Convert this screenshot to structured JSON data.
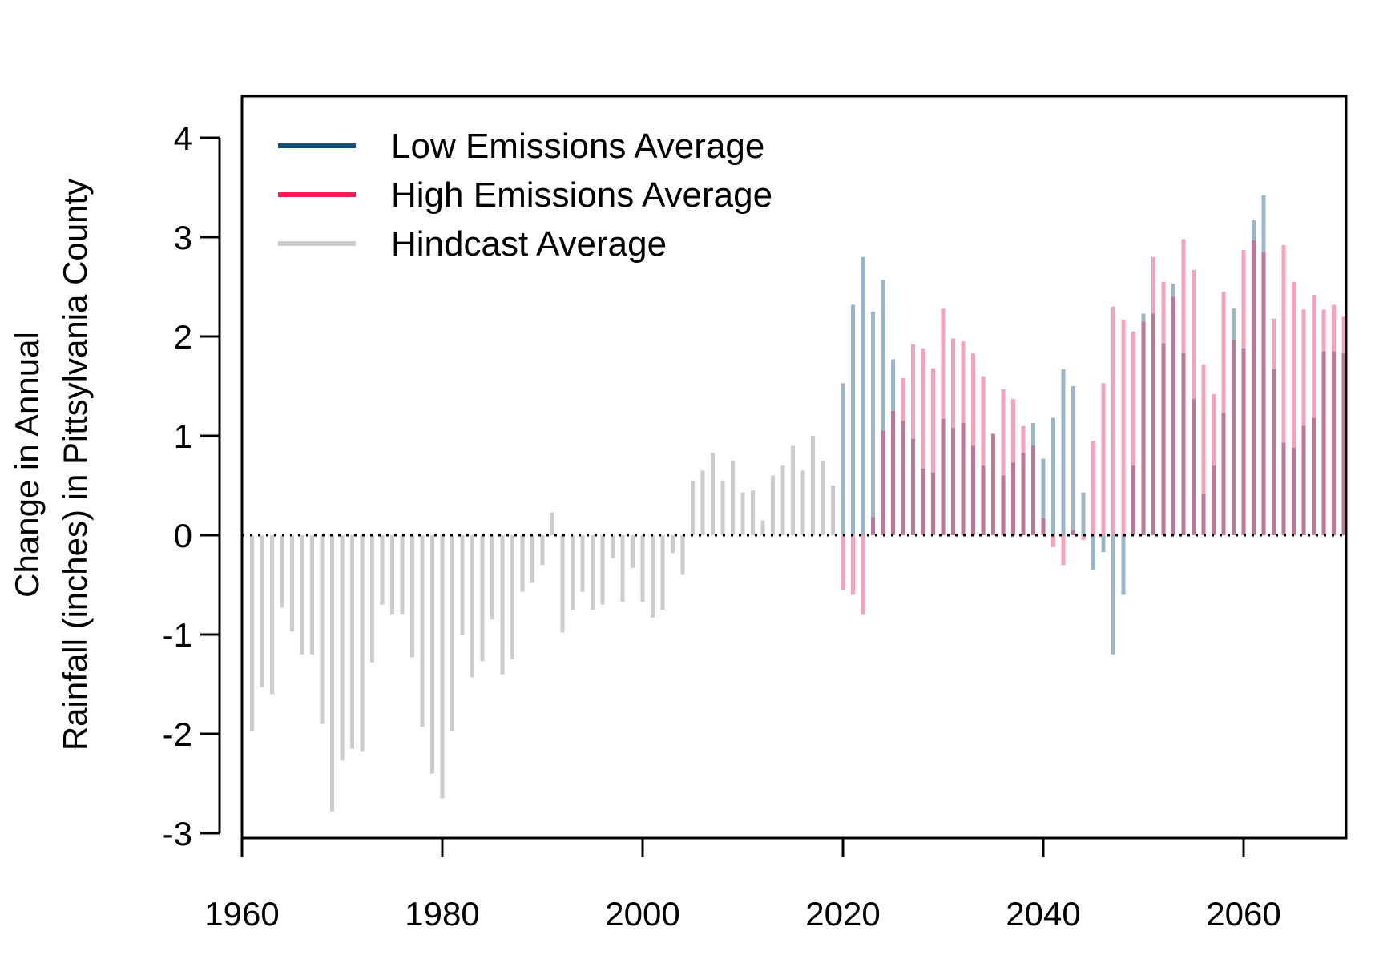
{
  "chart_data": {
    "type": "bar",
    "title": "",
    "xlabel": "",
    "ylabel": [
      "Change in Annual",
      "Rainfall (inches) in Pittsylvania County"
    ],
    "xlim": [
      1960,
      2070
    ],
    "ylim": [
      -3,
      4
    ],
    "x_ticks": [
      "1960",
      "1980",
      "2000",
      "2020",
      "2040",
      "2060"
    ],
    "y_ticks": [
      "-3",
      "-2",
      "-1",
      "0",
      "1",
      "2",
      "3",
      "4"
    ],
    "reference_line": {
      "y": 0,
      "style": "dotted"
    },
    "grid": false,
    "legend": {
      "position": "top-left"
    },
    "series": [
      {
        "name": "Hindcast Average",
        "color": "#cccccc",
        "x": [
          1961,
          1962,
          1963,
          1964,
          1965,
          1966,
          1967,
          1968,
          1969,
          1970,
          1971,
          1972,
          1973,
          1974,
          1975,
          1976,
          1977,
          1978,
          1979,
          1980,
          1981,
          1982,
          1983,
          1984,
          1985,
          1986,
          1987,
          1988,
          1989,
          1990,
          1991,
          1992,
          1993,
          1994,
          1995,
          1996,
          1997,
          1998,
          1999,
          2000,
          2001,
          2002,
          2003,
          2004,
          2005,
          2006,
          2007,
          2008,
          2009,
          2010,
          2011,
          2012,
          2013,
          2014,
          2015,
          2016,
          2017,
          2018,
          2019
        ],
        "values": [
          -1.97,
          -1.53,
          -1.6,
          -0.73,
          -0.97,
          -1.2,
          -1.2,
          -1.9,
          -2.78,
          -2.27,
          -2.15,
          -2.18,
          -1.28,
          -0.7,
          -0.8,
          -0.8,
          -1.23,
          -1.93,
          -2.4,
          -2.65,
          -1.97,
          -1.0,
          -1.43,
          -1.27,
          -0.85,
          -1.4,
          -1.25,
          -0.57,
          -0.48,
          -0.3,
          0.23,
          -0.98,
          -0.75,
          -0.57,
          -0.75,
          -0.7,
          -0.23,
          -0.67,
          -0.33,
          -0.67,
          -0.83,
          -0.75,
          -0.18,
          -0.4,
          0.55,
          0.65,
          0.83,
          0.55,
          0.75,
          0.43,
          0.45,
          0.15,
          0.6,
          0.7,
          0.9,
          0.65,
          1.0,
          0.75,
          0.5
        ]
      },
      {
        "name": "Low Emissions Average",
        "color": "#14507a",
        "x": [
          2020,
          2021,
          2022,
          2023,
          2024,
          2025,
          2026,
          2027,
          2028,
          2029,
          2030,
          2031,
          2032,
          2033,
          2034,
          2035,
          2036,
          2037,
          2038,
          2039,
          2040,
          2041,
          2042,
          2043,
          2044,
          2045,
          2046,
          2047,
          2048,
          2049,
          2050,
          2051,
          2052,
          2053,
          2054,
          2055,
          2056,
          2057,
          2058,
          2059,
          2060,
          2061,
          2062,
          2063,
          2064,
          2065,
          2066,
          2067,
          2068,
          2069,
          2070
        ],
        "values": [
          1.53,
          2.32,
          2.8,
          2.25,
          2.57,
          1.77,
          1.15,
          0.97,
          0.67,
          0.63,
          1.17,
          1.08,
          1.13,
          0.9,
          0.7,
          1.02,
          0.6,
          0.73,
          0.83,
          1.13,
          0.77,
          1.18,
          1.67,
          1.5,
          0.43,
          -0.35,
          -0.17,
          -1.2,
          -0.6,
          0.7,
          2.23,
          2.23,
          1.93,
          2.53,
          1.83,
          1.37,
          0.42,
          0.7,
          1.23,
          2.28,
          1.88,
          3.17,
          3.42,
          1.67,
          0.93,
          0.88,
          1.1,
          1.18,
          1.85,
          1.85,
          1.83
        ]
      },
      {
        "name": "High Emissions Average",
        "color": "#ef1f5a",
        "x": [
          2020,
          2021,
          2022,
          2023,
          2024,
          2025,
          2026,
          2027,
          2028,
          2029,
          2030,
          2031,
          2032,
          2033,
          2034,
          2035,
          2036,
          2037,
          2038,
          2039,
          2040,
          2041,
          2042,
          2043,
          2044,
          2045,
          2046,
          2047,
          2048,
          2049,
          2050,
          2051,
          2052,
          2053,
          2054,
          2055,
          2056,
          2057,
          2058,
          2059,
          2060,
          2061,
          2062,
          2063,
          2064,
          2065,
          2066,
          2067,
          2068,
          2069,
          2070
        ],
        "values": [
          -0.55,
          -0.6,
          -0.8,
          0.18,
          1.05,
          1.25,
          1.58,
          1.92,
          1.88,
          1.68,
          2.28,
          1.98,
          1.95,
          1.83,
          1.6,
          1.02,
          1.47,
          1.37,
          1.1,
          0.9,
          0.17,
          -0.12,
          -0.3,
          0.05,
          -0.05,
          0.95,
          1.53,
          2.3,
          2.17,
          2.05,
          2.15,
          2.8,
          2.55,
          2.4,
          2.98,
          2.67,
          1.72,
          1.42,
          2.45,
          1.97,
          2.87,
          2.97,
          2.85,
          2.18,
          2.92,
          2.55,
          2.27,
          2.42,
          2.27,
          2.32,
          2.2
        ]
      }
    ]
  }
}
